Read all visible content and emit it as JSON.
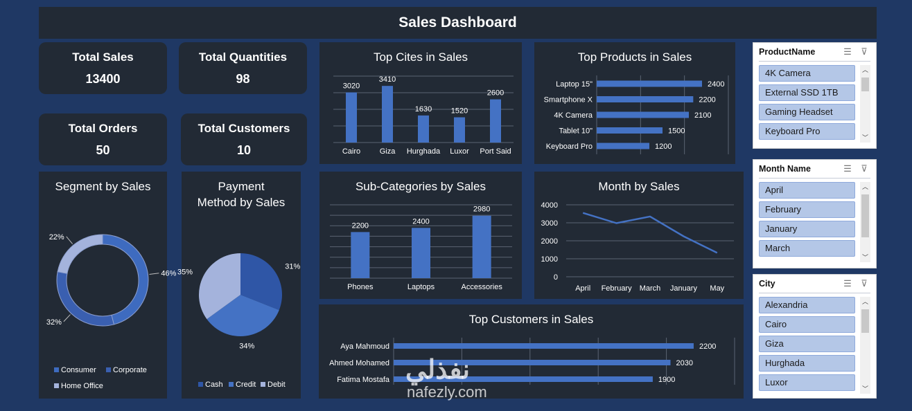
{
  "dashboard": {
    "title": "Sales Dashboard"
  },
  "kpis": {
    "total_sales": {
      "label": "Total Sales",
      "value": "13400"
    },
    "total_quantities": {
      "label": "Total Quantities",
      "value": "98"
    },
    "total_orders": {
      "label": "Total Orders",
      "value": "50"
    },
    "total_customers": {
      "label": "Total Customers",
      "value": "10"
    }
  },
  "colors": {
    "background": "#1f3864",
    "panel": "#222a35",
    "bar": "#4472c4",
    "slicer_item": "#b4c7e7"
  },
  "chart_data": [
    {
      "id": "segment",
      "type": "pie",
      "title": "Segment by Sales",
      "donut": true,
      "categories": [
        "Consumer",
        "Corporate",
        "Home Office"
      ],
      "values": [
        46,
        32,
        22
      ],
      "labels": [
        "46%",
        "32%",
        "22%"
      ],
      "colors": [
        "#3e6bbf",
        "#3a5fb0",
        "#a4b3dc"
      ],
      "legend": "bottom"
    },
    {
      "id": "payment",
      "type": "pie",
      "title_lines": [
        "Payment",
        "Method by Sales"
      ],
      "categories": [
        "Cash",
        "Credit",
        "Debit"
      ],
      "values": [
        31,
        34,
        35
      ],
      "labels": [
        "31%",
        "34%",
        "35%"
      ],
      "colors": [
        "#2f56a6",
        "#4472c4",
        "#a4b3dc"
      ],
      "legend": "bottom"
    },
    {
      "id": "cities",
      "type": "bar",
      "title": "Top Cites in Sales",
      "categories": [
        "Cairo",
        "Giza",
        "Hurghada",
        "Luxor",
        "Port Said"
      ],
      "values": [
        3020,
        3410,
        1630,
        1520,
        2600
      ],
      "ylim": [
        0,
        4000
      ]
    },
    {
      "id": "products",
      "type": "bar",
      "orientation": "horizontal",
      "title": "Top Products in Sales",
      "categories": [
        "Laptop 15\"",
        "Smartphone X",
        "4K Camera",
        "Tablet 10\"",
        "Keyboard Pro"
      ],
      "values": [
        2400,
        2200,
        2100,
        1500,
        1200
      ],
      "xlim": [
        0,
        3000
      ]
    },
    {
      "id": "subcat",
      "type": "bar",
      "title": "Sub-Categories by Sales",
      "categories": [
        "Phones",
        "Laptops",
        "Accessories"
      ],
      "values": [
        2200,
        2400,
        2980
      ],
      "ylim": [
        0,
        3500
      ]
    },
    {
      "id": "month",
      "type": "line",
      "title": "Month by Sales",
      "categories": [
        "April",
        "February",
        "March",
        "January",
        "May"
      ],
      "values": [
        3550,
        2980,
        3350,
        2250,
        1330
      ],
      "yticks": [
        0,
        1000,
        2000,
        3000,
        4000
      ],
      "ylim": [
        0,
        4000
      ]
    },
    {
      "id": "customers",
      "type": "bar",
      "orientation": "horizontal",
      "title": "Top Customers in Sales",
      "categories": [
        "Aya Mahmoud",
        "Ahmed Mohamed",
        "Fatima Mostafa"
      ],
      "values": [
        2200,
        2030,
        1900
      ],
      "xlim": [
        0,
        2500
      ]
    }
  ],
  "slicers": {
    "product": {
      "title": "ProductName",
      "items": [
        "4K Camera",
        "External SSD 1TB",
        "Gaming Headset",
        "Keyboard Pro"
      ]
    },
    "month": {
      "title": "Month Name",
      "items": [
        "April",
        "February",
        "January",
        "March"
      ]
    },
    "city": {
      "title": "City",
      "items": [
        "Alexandria",
        "Cairo",
        "Giza",
        "Hurghada",
        "Luxor"
      ]
    }
  },
  "icons": {
    "multi_select": "multi-select-icon",
    "clear_filter": "clear-filter-icon"
  },
  "watermark": {
    "arabic": "نفذلي",
    "latin": "nafezly.com"
  }
}
